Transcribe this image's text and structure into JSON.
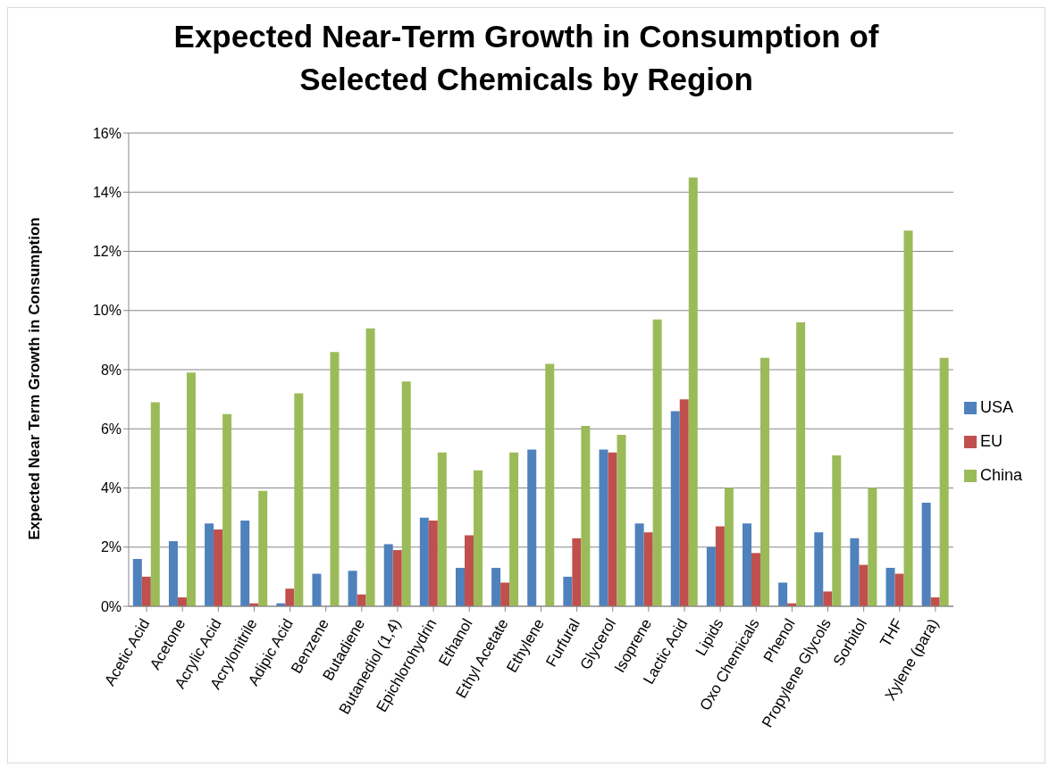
{
  "chart_data": {
    "type": "bar",
    "title": "Expected Near-Term Growth in Consumption of Selected Chemicals by Region",
    "ylabel": "Expected Near Term Growth in Consumption",
    "categories": [
      "Acetic Acid",
      "Acetone",
      "Acrylic Acid",
      "Acrylonitrile",
      "Adipic Acid",
      "Benzene",
      "Butadiene",
      "Butanediol (1,4)",
      "Epichlorohydrin",
      "Ethanol",
      "Ethyl Acetate",
      "Ethylene",
      "Furfural",
      "Glycerol",
      "Isoprene",
      "Lactic Acid",
      "Lipids",
      "Oxo Chemicals",
      "Phenol",
      "Propylene Glycols",
      "Sorbitol",
      "THF",
      "Xylene (para)"
    ],
    "series": [
      {
        "name": "USA",
        "color": "#4f81bd",
        "values": [
          1.6,
          2.2,
          2.8,
          2.9,
          0.1,
          1.1,
          1.2,
          2.1,
          3.0,
          1.3,
          1.3,
          5.3,
          1.0,
          5.3,
          2.8,
          6.6,
          2.0,
          2.8,
          0.8,
          2.5,
          2.3,
          1.3,
          3.5
        ]
      },
      {
        "name": "EU",
        "color": "#c0504d",
        "values": [
          1.0,
          0.3,
          2.6,
          0.1,
          0.6,
          0,
          0.4,
          1.9,
          2.9,
          2.4,
          0.8,
          0,
          2.3,
          5.2,
          2.5,
          7.0,
          2.7,
          1.8,
          0.1,
          0.5,
          1.4,
          1.1,
          0.3
        ]
      },
      {
        "name": "China",
        "color": "#9bbb59",
        "values": [
          6.9,
          7.9,
          6.5,
          3.9,
          7.2,
          8.6,
          9.4,
          7.6,
          5.2,
          4.6,
          5.2,
          8.2,
          6.1,
          5.8,
          9.7,
          14.5,
          4.0,
          8.4,
          9.6,
          5.1,
          4.0,
          12.7,
          8.4
        ]
      }
    ],
    "ylim": [
      0,
      16
    ],
    "yticks": [
      {
        "value": 0,
        "label": "0%"
      },
      {
        "value": 2,
        "label": "2%"
      },
      {
        "value": 4,
        "label": "4%"
      },
      {
        "value": 6,
        "label": "6%"
      },
      {
        "value": 8,
        "label": "8%"
      },
      {
        "value": 10,
        "label": "10%"
      },
      {
        "value": 12,
        "label": "12%"
      },
      {
        "value": 14,
        "label": "14%"
      },
      {
        "value": 16,
        "label": "16%"
      }
    ],
    "grid": "y",
    "legend": "right"
  }
}
